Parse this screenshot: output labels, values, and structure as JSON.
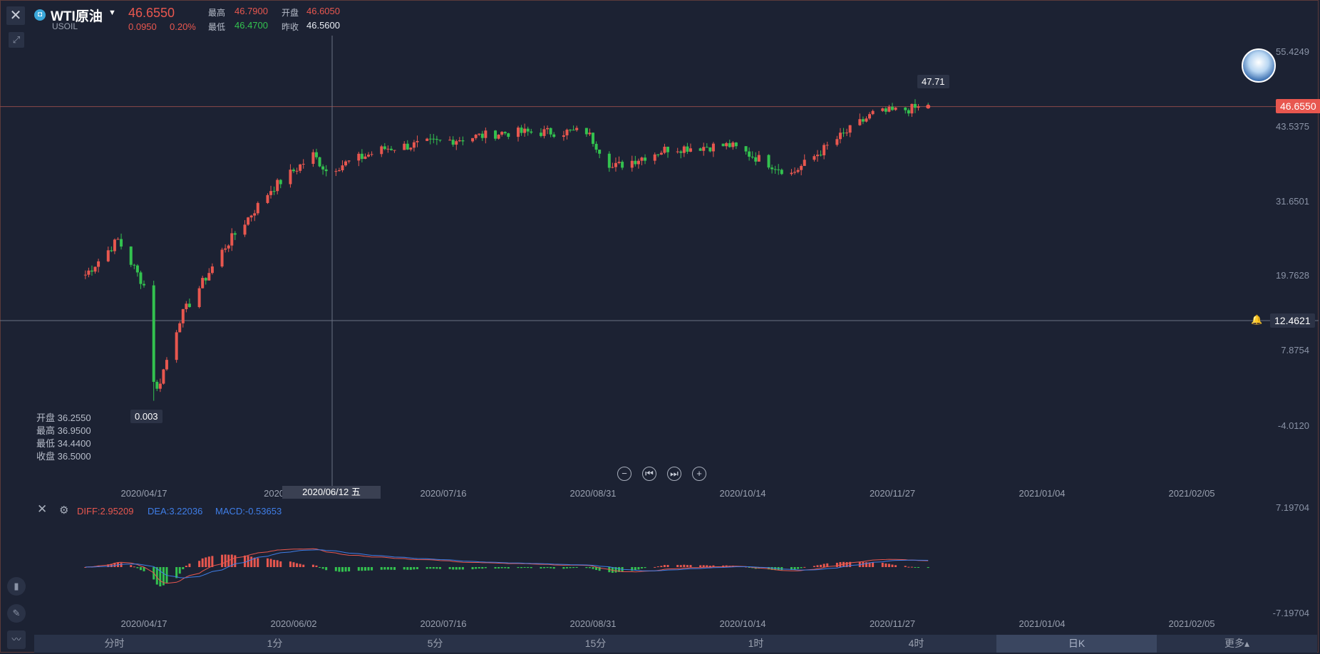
{
  "header": {
    "symbol_icon": "symbol-logo-icon",
    "name": "WTI原油",
    "code": "USOIL",
    "price": "46.6550",
    "change": "0.0950",
    "change_pct": "0.20%",
    "high_label": "最高",
    "high": "46.7900",
    "open_label": "开盘",
    "open": "46.6050",
    "low_label": "最低",
    "low": "46.4700",
    "prev_close_label": "昨收",
    "prev_close": "46.5600"
  },
  "colors": {
    "up": "#e8574f",
    "down": "#33c24f",
    "background": "#1c2233",
    "diff": "#e8574f",
    "dea": "#3f7ee8"
  },
  "main": {
    "y_ticks": [
      "55.4249",
      "43.5375",
      "31.6501",
      "19.7628",
      "7.8754",
      "-4.0120"
    ],
    "last_price_tag": "46.6550",
    "crosshair_price_tag": "12.4621",
    "high_annotation": "47.71",
    "low_annotation": "0.003",
    "crosshair_date": "2020/06/12 五",
    "ohlc": {
      "open": "开盘 36.2550",
      "high": "最高 36.9500",
      "low": "最低 34.4400",
      "close": "收盘 36.5000"
    }
  },
  "x_labels": [
    "2020/04/17",
    "2020/06/02",
    "2020/07/16",
    "2020/08/31",
    "2020/10/14",
    "2020/11/27",
    "2021/01/04",
    "2021/02/05"
  ],
  "x_labels_main_second": "2020/0",
  "macd": {
    "diff": "DIFF:2.95209",
    "dea": "DEA:3.22036",
    "macd": "MACD:-0.53653",
    "y_top": "7.19704",
    "y_bottom": "-7.19704"
  },
  "tabs": [
    "分时",
    "1分",
    "5分",
    "15分",
    "1时",
    "4时",
    "日K",
    "更多▴"
  ],
  "active_tab": "日K",
  "chart_data": [
    {
      "type": "candlestick",
      "title": "WTI原油 USOIL 日K",
      "ylim": [
        -4.012,
        55.4249
      ],
      "last_price": 46.655,
      "series_anchor_close": [
        [
          "2020/03/30",
          20.0
        ],
        [
          "2020/04/09",
          25.5
        ],
        [
          "2020/04/17",
          18.3
        ],
        [
          "2020/04/20",
          0.003
        ],
        [
          "2020/04/28",
          13.0
        ],
        [
          "2020/05/12",
          24.5
        ],
        [
          "2020/05/26",
          33.5
        ],
        [
          "2020/06/08",
          39.0
        ],
        [
          "2020/06/12",
          36.5
        ],
        [
          "2020/06/30",
          40.0
        ],
        [
          "2020/07/16",
          41.0
        ],
        [
          "2020/08/05",
          42.5
        ],
        [
          "2020/08/31",
          42.7
        ],
        [
          "2020/09/08",
          37.0
        ],
        [
          "2020/09/25",
          40.0
        ],
        [
          "2020/10/14",
          40.5
        ],
        [
          "2020/11/02",
          36.0
        ],
        [
          "2020/11/16",
          41.5
        ],
        [
          "2020/11/27",
          45.5
        ],
        [
          "2020/12/14",
          46.655
        ]
      ],
      "annotations": {
        "max": 47.71,
        "min": 0.003
      }
    },
    {
      "type": "bar",
      "title": "MACD",
      "ylim": [
        -7.19704,
        7.19704
      ],
      "lines": [
        "DIFF",
        "DEA"
      ],
      "last": {
        "DIFF": 2.95209,
        "DEA": 3.22036,
        "MACD": -0.53653
      }
    }
  ]
}
